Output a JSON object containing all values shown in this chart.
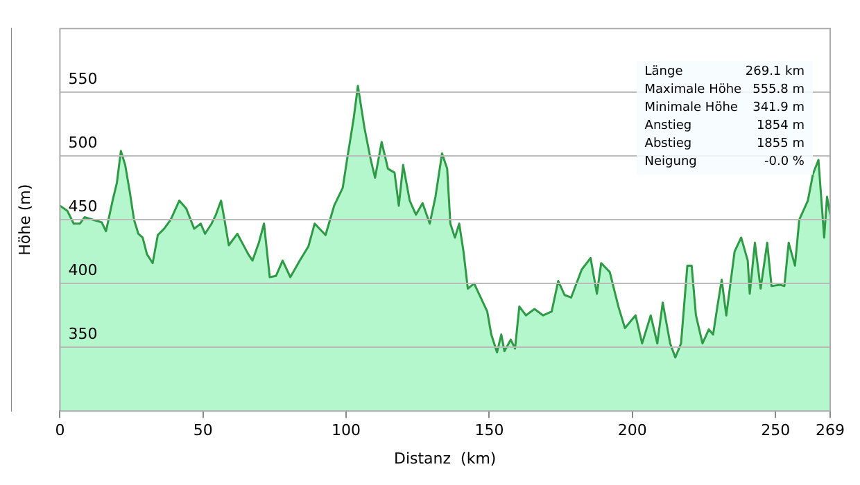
{
  "chart_data": {
    "type": "area",
    "xlabel": "Distanz  (km)",
    "ylabel": "Höhe (m)",
    "xlim": [
      0,
      269.1
    ],
    "xticks": [
      0,
      50,
      100,
      150,
      200,
      250,
      {
        "value": 269.1,
        "label": "269"
      }
    ],
    "ylim": [
      300,
      600
    ],
    "yticks": [
      350,
      400,
      450,
      500,
      550
    ],
    "grid": "y",
    "legend": false,
    "annotations": [
      "Länge 269.1 km",
      "Maximale Höhe 555.8 m",
      "Minimale Höhe 341.9 m",
      "Anstieg 1854 m",
      "Abstieg 1855 m",
      "Neigung -0.0 %"
    ],
    "series": [
      {
        "color": "#2e9a45",
        "x": [
          0,
          2.6,
          4.8,
          7.0,
          8.6,
          11.6,
          14.6,
          16.1,
          18.4,
          19.9,
          21.3,
          22.8,
          24.4,
          25.9,
          27.4,
          28.9,
          30.4,
          32.4,
          34.2,
          36.4,
          38.7,
          41.7,
          44.1,
          46.9,
          49.2,
          50.7,
          53,
          54.5,
          56.3,
          57.5,
          59,
          62,
          65.8,
          67.3,
          69.5,
          71.3,
          73.3,
          75.5,
          77.8,
          80.5,
          83.8,
          86.8,
          89,
          92.8,
          95.8,
          98.8,
          100.3,
          102.6,
          104.1,
          106.4,
          108.6,
          110.1,
          112.4,
          114.6,
          116.9,
          118.4,
          119.9,
          122.2,
          124.4,
          126.7,
          129.2,
          131.2,
          133.5,
          135.3,
          136.4,
          138,
          139.5,
          141,
          142.5,
          144.7,
          147,
          149.3,
          150.7,
          152.7,
          154.2,
          155.3,
          157.5,
          159,
          160.5,
          162.8,
          165.8,
          168.8,
          171.8,
          174.1,
          176.3,
          178.6,
          182.3,
          185.4,
          187.6,
          189.1,
          192.1,
          195.1,
          197.4,
          199.6,
          201.1,
          203.4,
          206.4,
          208.7,
          210.6,
          213.2,
          215,
          217,
          219.2,
          220.7,
          222.2,
          224.5,
          226.7,
          228.2,
          229.7,
          231.2,
          232.8,
          235.7,
          238,
          240.3,
          241,
          242.8,
          244.8,
          247.1,
          248.6,
          251.6,
          253.1,
          254.6,
          256.8,
          258.3,
          261.3,
          263.1,
          265,
          267,
          268,
          269.1
        ],
        "values": [
          461,
          457,
          447,
          447,
          452,
          450,
          448,
          441,
          465,
          479,
          504,
          493,
          472,
          450,
          439,
          436,
          423,
          416,
          438,
          443,
          450,
          465,
          459,
          443,
          447,
          439,
          447,
          454,
          465,
          450,
          430,
          439,
          423,
          418,
          432,
          447,
          405,
          406,
          418,
          405,
          418,
          429,
          447,
          438,
          461,
          475,
          497,
          529,
          555,
          522,
          497,
          483,
          511,
          490,
          487,
          461,
          493,
          465,
          454,
          463,
          447,
          468,
          502,
          490,
          447,
          436,
          447,
          425,
          396,
          400,
          389,
          378,
          360,
          346,
          360,
          347,
          356,
          349,
          382,
          375,
          380,
          375,
          378,
          402,
          391,
          389,
          411,
          420,
          392,
          416,
          409,
          382,
          365,
          371,
          375,
          353,
          375,
          353,
          385,
          353,
          342,
          353,
          414,
          414,
          375,
          353,
          364,
          360,
          382,
          403,
          375,
          425,
          436,
          418,
          392,
          432,
          396,
          432,
          398,
          399,
          398,
          432,
          414,
          450,
          465,
          486,
          497,
          436,
          468,
          454
        ]
      }
    ]
  }
}
